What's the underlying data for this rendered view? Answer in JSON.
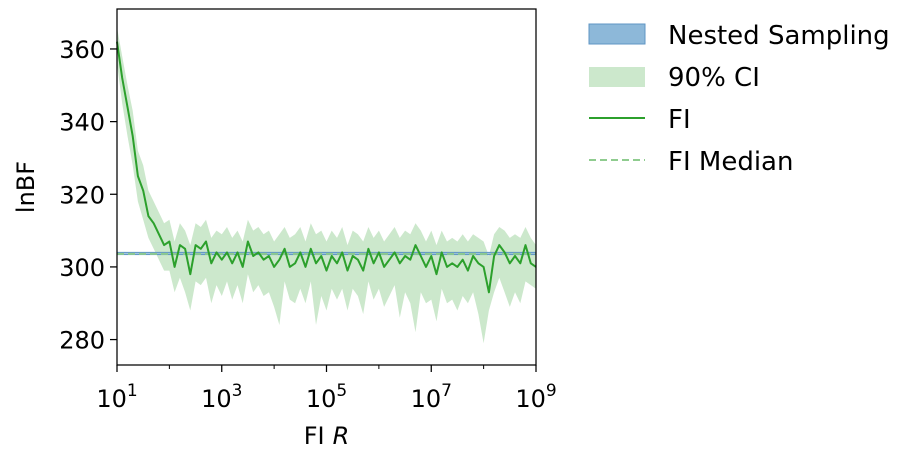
{
  "chart_data": {
    "type": "line",
    "title": "",
    "xlabel": "FI",
    "xlabel_italic": "R",
    "ylabel": "lnBF",
    "xscale": "log",
    "xlim": [
      10,
      1000000000
    ],
    "ylim": [
      273,
      371
    ],
    "x_ticks": [
      {
        "base": "10",
        "exp": "1",
        "value": 10
      },
      {
        "base": "10",
        "exp": "3",
        "value": 1000
      },
      {
        "base": "10",
        "exp": "5",
        "value": 100000
      },
      {
        "base": "10",
        "exp": "7",
        "value": 10000000
      },
      {
        "base": "10",
        "exp": "9",
        "value": 1000000000
      }
    ],
    "y_ticks": [
      280,
      300,
      320,
      340,
      360
    ],
    "grid": false,
    "legend_position": "outside-right",
    "nested_sampling": {
      "name": "Nested Sampling",
      "value": 303.7,
      "band": [
        303.4,
        304.0
      ],
      "color": "#8db8d9",
      "edge_color": "#5f96c4"
    },
    "fi_median": {
      "name": "FI Median",
      "value": 303.6,
      "color": "#8fcc8f"
    },
    "series": [
      {
        "name": "FI",
        "color": "#2ca02c",
        "x_log10": [
          1.0,
          1.1,
          1.2,
          1.3,
          1.4,
          1.5,
          1.6,
          1.7,
          1.8,
          1.9,
          2.0,
          2.1,
          2.2,
          2.3,
          2.4,
          2.5,
          2.6,
          2.7,
          2.8,
          2.9,
          3.0,
          3.1,
          3.2,
          3.3,
          3.4,
          3.5,
          3.6,
          3.7,
          3.8,
          3.9,
          4.0,
          4.1,
          4.2,
          4.3,
          4.4,
          4.5,
          4.6,
          4.7,
          4.8,
          4.9,
          5.0,
          5.1,
          5.2,
          5.3,
          5.4,
          5.5,
          5.6,
          5.7,
          5.8,
          5.9,
          6.0,
          6.1,
          6.2,
          6.3,
          6.4,
          6.5,
          6.6,
          6.7,
          6.8,
          6.9,
          7.0,
          7.1,
          7.2,
          7.3,
          7.4,
          7.5,
          7.6,
          7.7,
          7.8,
          7.9,
          8.0,
          8.1,
          8.2,
          8.3,
          8.4,
          8.5,
          8.6,
          8.7,
          8.8,
          8.9,
          9.0
        ],
        "values": [
          362,
          352,
          344,
          336,
          325,
          321,
          314,
          312,
          309,
          306,
          307,
          300,
          306,
          305,
          298,
          306,
          305,
          307,
          301,
          304,
          302,
          304,
          301,
          304,
          300,
          307,
          303,
          304,
          302,
          303,
          300,
          302,
          305,
          300,
          301,
          304,
          300,
          305,
          301,
          303,
          299,
          303,
          301,
          304,
          299,
          303,
          302,
          299,
          305,
          301,
          304,
          300,
          302,
          304,
          301,
          303,
          302,
          306,
          303,
          300,
          303,
          298,
          304,
          300,
          301,
          300,
          302,
          299,
          303,
          301,
          300,
          293,
          303,
          306,
          304,
          301,
          303,
          301,
          306,
          301,
          300
        ],
        "ci_low": [
          356,
          345,
          336,
          328,
          318,
          313,
          308,
          305,
          302,
          299,
          299,
          293,
          297,
          293,
          288,
          296,
          295,
          297,
          290,
          295,
          292,
          296,
          291,
          295,
          290,
          298,
          293,
          295,
          292,
          293,
          289,
          284,
          296,
          291,
          290,
          294,
          290,
          296,
          284,
          292,
          288,
          294,
          291,
          294,
          288,
          294,
          292,
          287,
          296,
          291,
          294,
          289,
          292,
          295,
          286,
          293,
          290,
          282,
          293,
          290,
          291,
          285,
          294,
          290,
          291,
          288,
          292,
          290,
          293,
          287,
          279,
          288,
          293,
          297,
          293,
          289,
          293,
          290,
          296,
          295,
          294
        ],
        "ci_high": [
          366,
          358,
          350,
          343,
          332,
          328,
          321,
          318,
          315,
          312,
          313,
          307,
          312,
          310,
          306,
          312,
          311,
          313,
          308,
          310,
          309,
          311,
          308,
          310,
          307,
          313,
          310,
          311,
          309,
          310,
          307,
          309,
          311,
          308,
          309,
          311,
          307,
          312,
          309,
          310,
          307,
          310,
          308,
          311,
          306,
          310,
          309,
          307,
          311,
          308,
          310,
          307,
          309,
          311,
          308,
          310,
          309,
          312,
          310,
          307,
          310,
          306,
          310,
          307,
          308,
          307,
          309,
          307,
          309,
          308,
          307,
          303,
          309,
          311,
          310,
          308,
          309,
          308,
          311,
          308,
          306
        ]
      }
    ],
    "ci_legend": {
      "name": "90% CI",
      "color": "#cce8cc"
    }
  }
}
